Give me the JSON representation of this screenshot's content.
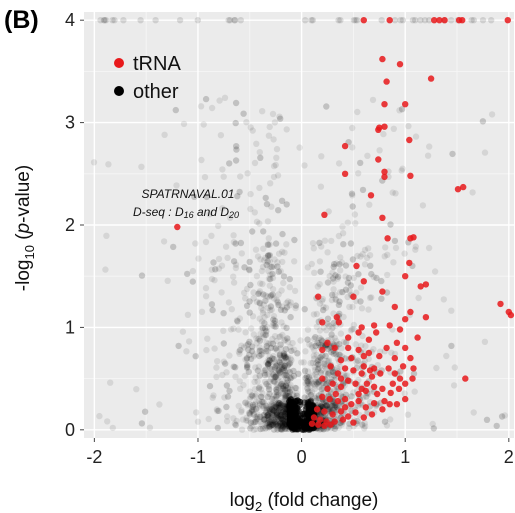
{
  "chart_data": {
    "type": "scatter",
    "panel_label": "(B)",
    "xlabel": "log",
    "xlabel_sub": "2",
    "xlabel_rest": " (fold change)",
    "ylabel": "-log",
    "ylabel_sub": "10",
    "ylabel_open": " (",
    "ylabel_italic": "p",
    "ylabel_close": "-value)",
    "xlim": [
      -2.1,
      2.05
    ],
    "ylim": [
      -0.08,
      4.08
    ],
    "x_ticks": [
      -2,
      -1,
      0,
      1,
      2
    ],
    "y_ticks": [
      0,
      1,
      2,
      3,
      4
    ],
    "grid": true,
    "background": "#ebebeb",
    "legend_position": "top-left",
    "annotation": {
      "line1": "SPATRNAVAL.01",
      "line2_prefix": "D-seq : D",
      "line2_sub1": "16",
      "line2_mid": " and D",
      "line2_sub2": "20"
    },
    "series": [
      {
        "name": "tRNA",
        "color": "#e8191b",
        "points": [
          [
            0.6,
            4.0
          ],
          [
            0.85,
            4.0
          ],
          [
            1.28,
            4.0
          ],
          [
            1.33,
            4.0
          ],
          [
            1.38,
            4.0
          ],
          [
            1.52,
            4.0
          ],
          [
            1.55,
            4.0
          ],
          [
            1.99,
            4.0
          ],
          [
            0.78,
            3.62
          ],
          [
            0.95,
            3.57
          ],
          [
            0.82,
            3.4
          ],
          [
            1.25,
            3.43
          ],
          [
            0.8,
            3.18
          ],
          [
            0.8,
            2.96
          ],
          [
            0.75,
            2.95
          ],
          [
            0.74,
            2.93
          ],
          [
            1.0,
            3.18
          ],
          [
            0.42,
            2.77
          ],
          [
            0.74,
            2.64
          ],
          [
            1.04,
            2.83
          ],
          [
            0.8,
            2.52
          ],
          [
            0.8,
            2.47
          ],
          [
            1.05,
            2.48
          ],
          [
            1.51,
            2.35
          ],
          [
            1.56,
            2.37
          ],
          [
            0.42,
            2.5
          ],
          [
            0.67,
            2.29
          ],
          [
            0.22,
            2.1
          ],
          [
            0.78,
            2.07
          ],
          [
            1.05,
            1.87
          ],
          [
            1.08,
            1.88
          ],
          [
            0.83,
            1.87
          ],
          [
            -1.2,
            1.98
          ],
          [
            1.04,
            1.63
          ],
          [
            0.53,
            1.6
          ],
          [
            0.6,
            1.45
          ],
          [
            1.0,
            1.5
          ],
          [
            1.15,
            1.4
          ],
          [
            1.2,
            1.42
          ],
          [
            0.5,
            1.3
          ],
          [
            0.78,
            1.35
          ],
          [
            0.16,
            1.3
          ],
          [
            0.36,
            1.05
          ],
          [
            0.34,
            1.1
          ],
          [
            0.2,
            1.05
          ],
          [
            0.9,
            1.2
          ],
          [
            1.0,
            1.08
          ],
          [
            1.05,
            1.15
          ],
          [
            1.2,
            1.1
          ],
          [
            0.7,
            1.02
          ],
          [
            0.85,
            1.02
          ],
          [
            0.95,
            0.98
          ],
          [
            1.12,
            0.9
          ],
          [
            1.92,
            1.23
          ],
          [
            2.0,
            1.15
          ],
          [
            2.02,
            1.12
          ],
          [
            1.58,
            0.5
          ],
          [
            0.25,
            0.85
          ],
          [
            0.32,
            0.8
          ],
          [
            0.45,
            0.8
          ],
          [
            0.55,
            0.78
          ],
          [
            0.6,
            0.72
          ],
          [
            0.65,
            0.75
          ],
          [
            0.75,
            0.72
          ],
          [
            0.82,
            0.8
          ],
          [
            0.9,
            0.7
          ],
          [
            1.0,
            0.8
          ],
          [
            1.05,
            0.7
          ],
          [
            0.28,
            0.62
          ],
          [
            0.35,
            0.55
          ],
          [
            0.42,
            0.6
          ],
          [
            0.5,
            0.58
          ],
          [
            0.58,
            0.55
          ],
          [
            0.66,
            0.58
          ],
          [
            0.7,
            0.6
          ],
          [
            0.76,
            0.55
          ],
          [
            0.84,
            0.6
          ],
          [
            0.9,
            0.55
          ],
          [
            0.95,
            0.5
          ],
          [
            1.0,
            0.45
          ],
          [
            1.07,
            0.5
          ],
          [
            0.2,
            0.5
          ],
          [
            0.3,
            0.45
          ],
          [
            0.38,
            0.42
          ],
          [
            0.45,
            0.48
          ],
          [
            0.52,
            0.45
          ],
          [
            0.58,
            0.4
          ],
          [
            0.62,
            0.38
          ],
          [
            0.7,
            0.42
          ],
          [
            0.78,
            0.4
          ],
          [
            0.86,
            0.36
          ],
          [
            0.94,
            0.4
          ],
          [
            0.2,
            0.32
          ],
          [
            0.27,
            0.3
          ],
          [
            0.35,
            0.28
          ],
          [
            0.42,
            0.3
          ],
          [
            0.48,
            0.25
          ],
          [
            0.55,
            0.28
          ],
          [
            0.62,
            0.22
          ],
          [
            0.7,
            0.26
          ],
          [
            0.78,
            0.2
          ],
          [
            0.85,
            0.25
          ],
          [
            0.15,
            0.2
          ],
          [
            0.22,
            0.18
          ],
          [
            0.3,
            0.15
          ],
          [
            0.38,
            0.18
          ],
          [
            0.45,
            0.13
          ],
          [
            0.52,
            0.17
          ],
          [
            0.6,
            0.12
          ],
          [
            0.68,
            0.15
          ],
          [
            0.12,
            0.12
          ],
          [
            0.18,
            0.1
          ],
          [
            0.24,
            0.08
          ],
          [
            0.32,
            0.08
          ],
          [
            0.4,
            0.1
          ],
          [
            0.5,
            0.07
          ],
          [
            0.1,
            0.06
          ],
          [
            0.16,
            0.05
          ],
          [
            0.22,
            0.04
          ],
          [
            0.28,
            0.05
          ],
          [
            0.2,
            0.78
          ],
          [
            0.38,
            0.68
          ],
          [
            0.55,
            0.95
          ],
          [
            0.65,
            0.88
          ],
          [
            0.72,
            0.95
          ],
          [
            0.92,
            0.85
          ],
          [
            0.48,
            0.7
          ],
          [
            0.6,
            0.62
          ],
          [
            0.68,
            0.52
          ],
          [
            0.38,
            0.5
          ],
          [
            0.25,
            0.4
          ],
          [
            0.33,
            0.35
          ],
          [
            0.42,
            0.22
          ],
          [
            0.55,
            0.35
          ],
          [
            0.63,
            0.45
          ],
          [
            0.73,
            0.35
          ],
          [
            0.8,
            0.28
          ],
          [
            0.88,
            0.45
          ],
          [
            0.98,
            0.62
          ],
          [
            1.08,
            0.6
          ],
          [
            1.0,
            0.3
          ],
          [
            0.92,
            0.25
          ],
          [
            0.45,
            0.9
          ],
          [
            0.58,
            1.0
          ]
        ]
      },
      {
        "name": "other",
        "color": "#000000"
      }
    ]
  }
}
